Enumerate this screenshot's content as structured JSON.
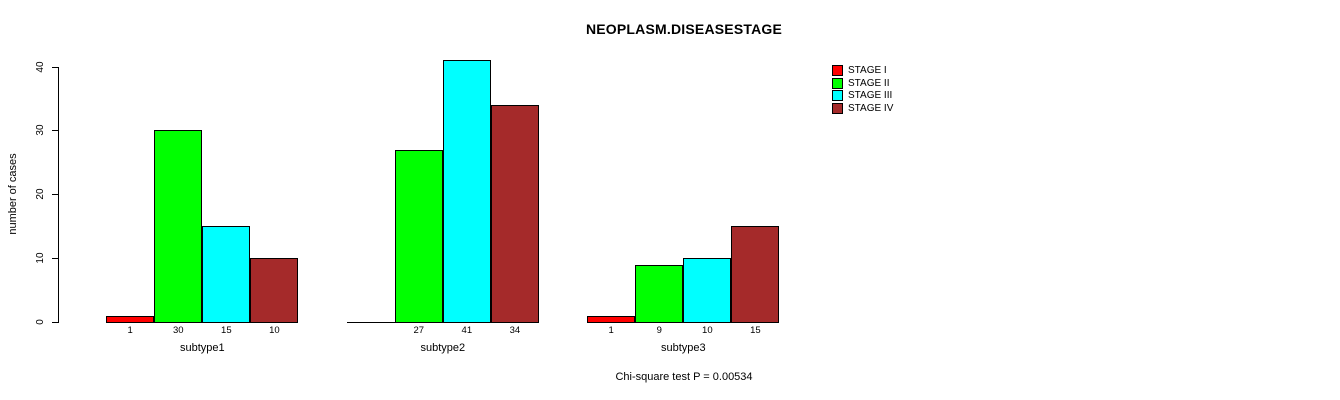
{
  "title": "NEOPLASM.DISEASESTAGE",
  "footer": {
    "note": "Chi-square test P = 0.00534"
  },
  "chart_data": {
    "type": "bar",
    "title": "NEOPLASM.DISEASESTAGE",
    "subtitle": "Chi-square test P = 0.00534",
    "xlabel": "",
    "ylabel": "number of cases",
    "ylim": [
      0,
      40
    ],
    "yticks": [
      0,
      10,
      20,
      30,
      40
    ],
    "grid": false,
    "legend_position": "top-right-outside-bars",
    "bar_value_labels_shown": true,
    "categories": [
      "subtype1",
      "subtype2",
      "subtype3"
    ],
    "series": [
      {
        "name": "STAGE I",
        "color": "#FF0000",
        "values": [
          1,
          0,
          1
        ]
      },
      {
        "name": "STAGE II",
        "color": "#00FF00",
        "values": [
          30,
          27,
          9
        ]
      },
      {
        "name": "STAGE III",
        "color": "#00FFFF",
        "values": [
          15,
          41,
          10
        ]
      },
      {
        "name": "STAGE IV",
        "color": "#A52A2A",
        "values": [
          10,
          34,
          15
        ]
      }
    ]
  }
}
